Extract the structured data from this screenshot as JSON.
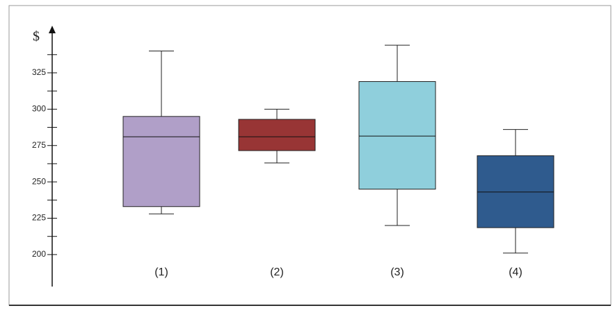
{
  "chart_data": {
    "type": "box",
    "y_label": "$",
    "categories": [
      "(1)",
      "(2)",
      "(3)",
      "(4)"
    ],
    "boxes": [
      {
        "min": 228,
        "q1": 233,
        "median": 281,
        "q3": 295,
        "max": 340,
        "color": "#b09fc8"
      },
      {
        "min": 263,
        "q1": 271.5,
        "median": 281,
        "q3": 293,
        "max": 300,
        "color": "#983535"
      },
      {
        "min": 220,
        "q1": 245,
        "median": 281.5,
        "q3": 319,
        "max": 344,
        "color": "#8fcfdc"
      },
      {
        "min": 201,
        "q1": 218.5,
        "median": 243,
        "q3": 268,
        "max": 286,
        "color": "#2f5b8e"
      }
    ],
    "ylim": [
      178,
      356
    ],
    "yticks": [
      200,
      225,
      250,
      275,
      300,
      325
    ],
    "yminorticks": [
      212.5,
      237.5,
      262.5,
      287.5,
      312.5,
      337.5
    ]
  }
}
